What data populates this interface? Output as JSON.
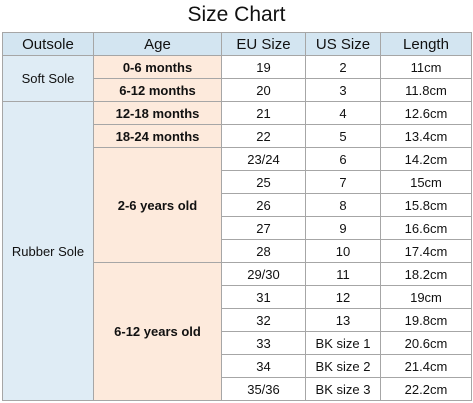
{
  "title": "Size Chart",
  "table": {
    "header": [
      "Outsole",
      "Age",
      "EU Size",
      "US Size",
      "Length"
    ],
    "sections": [
      {
        "outsole": "Soft Sole",
        "ages": [
          {
            "age": "0-6 months",
            "sizes": [
              [
                "19",
                "2",
                "11cm"
              ]
            ]
          },
          {
            "age": "6-12 months",
            "sizes": [
              [
                "20",
                "3",
                "11.8cm"
              ]
            ]
          }
        ]
      },
      {
        "outsole": "Rubber Sole",
        "ages": [
          {
            "age": "12-18 months",
            "sizes": [
              [
                "21",
                "4",
                "12.6cm"
              ]
            ]
          },
          {
            "age": "18-24 months",
            "sizes": [
              [
                "22",
                "5",
                "13.4cm"
              ]
            ]
          },
          {
            "age": "2-6 years old",
            "sizes": [
              [
                "23/24",
                "6",
                "14.2cm"
              ],
              [
                "25",
                "7",
                "15cm"
              ],
              [
                "26",
                "8",
                "15.8cm"
              ],
              [
                "27",
                "9",
                "16.6cm"
              ],
              [
                "28",
                "10",
                "17.4cm"
              ]
            ]
          },
          {
            "age": "6-12 years old",
            "sizes": [
              [
                "29/30",
                "11",
                "18.2cm"
              ],
              [
                "31",
                "12",
                "19cm"
              ],
              [
                "32",
                "13",
                "19.8cm"
              ],
              [
                "33",
                "BK size 1",
                "20.6cm"
              ],
              [
                "34",
                "BK size 2",
                "21.4cm"
              ],
              [
                "35/36",
                "BK size 3",
                "22.2cm"
              ]
            ]
          }
        ]
      }
    ]
  }
}
